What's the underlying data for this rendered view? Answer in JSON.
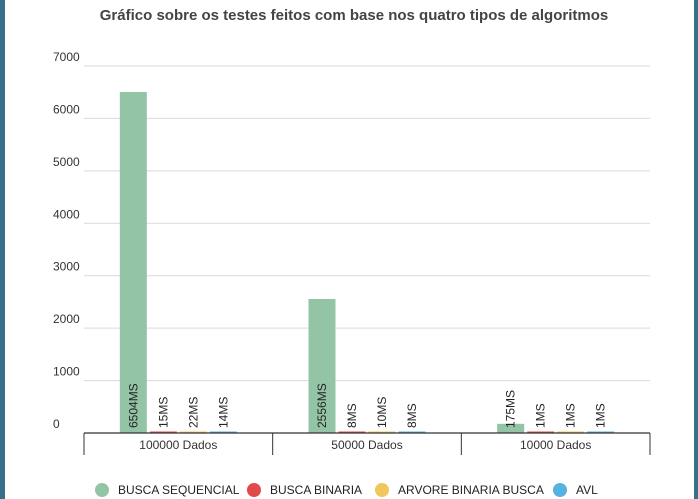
{
  "chart_data": {
    "type": "bar",
    "title": "Gráfico sobre os testes feitos com base nos quatro tipos de algoritmos",
    "xlabel": "",
    "ylabel": "",
    "categories": [
      "100000 Dados",
      "50000 Dados",
      "10000 Dados"
    ],
    "ylim": [
      0,
      7000
    ],
    "yticks": [
      0,
      1000,
      2000,
      3000,
      4000,
      5000,
      6000,
      7000
    ],
    "grid": true,
    "legend_position": "bottom",
    "series": [
      {
        "name": "BUSCA SEQUENCIAL",
        "color": "#93c4a5",
        "values": [
          6504,
          2556,
          175
        ],
        "labels": [
          "6504MS",
          "2556MS",
          "175MS"
        ]
      },
      {
        "name": "BUSCA BINARIA",
        "color": "#e24a4a",
        "values": [
          15,
          8,
          1
        ],
        "labels": [
          "15MS",
          "8MS",
          "1MS"
        ]
      },
      {
        "name": "ARVORE BINARIA BUSCA",
        "color": "#f1c75b",
        "values": [
          22,
          10,
          1
        ],
        "labels": [
          "22MS",
          "10MS",
          "1MS"
        ]
      },
      {
        "name": "AVL",
        "color": "#56b2e0",
        "values": [
          14,
          8,
          1
        ],
        "labels": [
          "14MS",
          "8MS",
          "1MS"
        ]
      }
    ]
  }
}
